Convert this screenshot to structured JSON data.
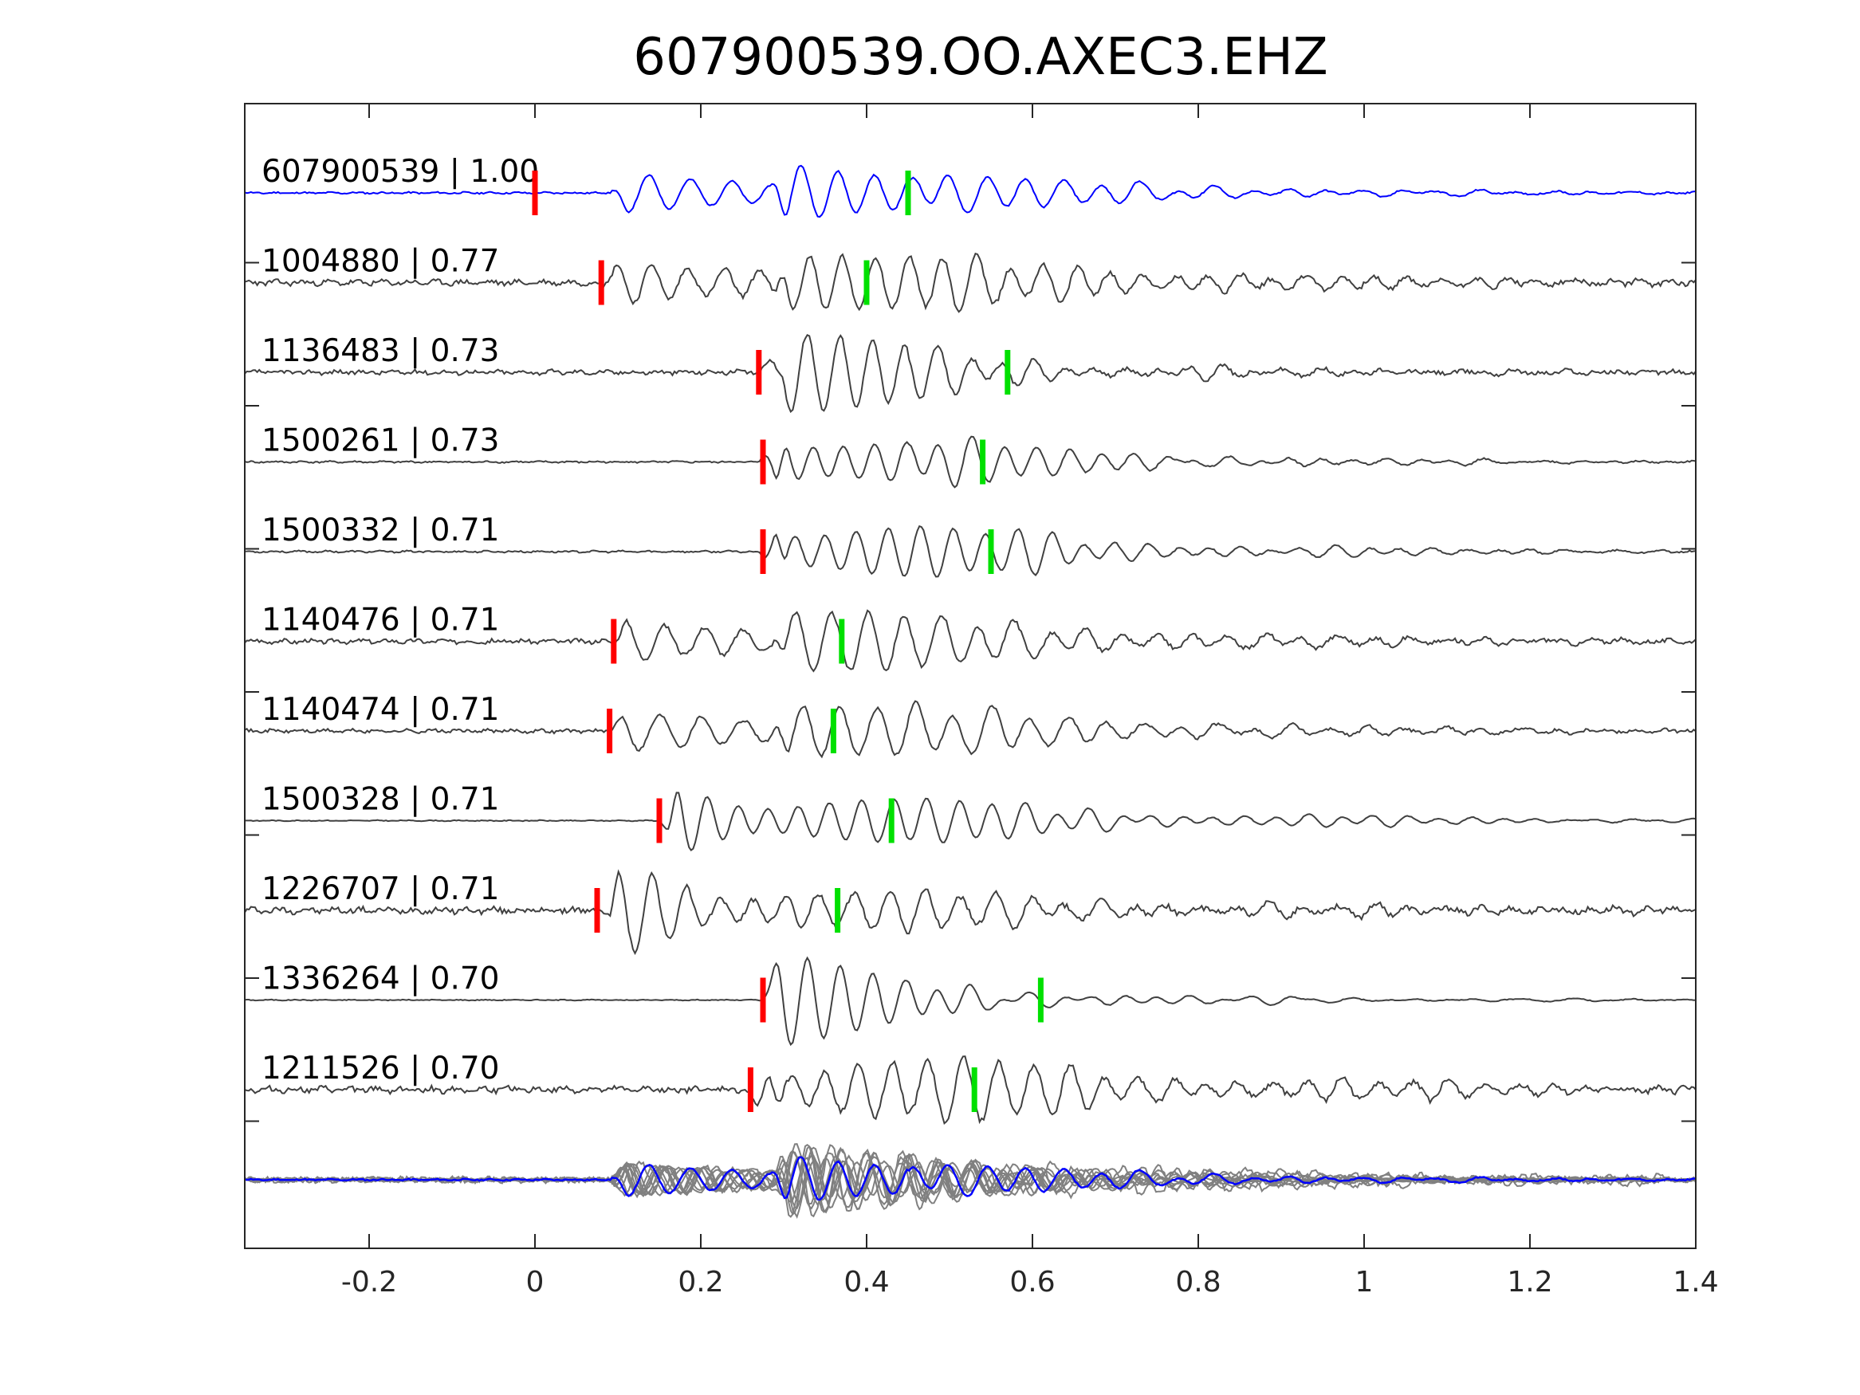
{
  "chart_data": {
    "type": "line",
    "title": "607900539.OO.AXEC3.EHZ",
    "xlabel": "",
    "ylabel": "",
    "xlim": [
      -0.35,
      1.4
    ],
    "x_ticks": [
      {
        "value": -0.2,
        "label": "-0.2"
      },
      {
        "value": 0,
        "label": "0"
      },
      {
        "value": 0.2,
        "label": "0.2"
      },
      {
        "value": 0.4,
        "label": "0.4"
      },
      {
        "value": 0.6,
        "label": "0.6"
      },
      {
        "value": 0.8,
        "label": "0.8"
      },
      {
        "value": 1,
        "label": "1"
      },
      {
        "value": 1.2,
        "label": "1.2"
      },
      {
        "value": 1.4,
        "label": "1.4"
      }
    ],
    "grid": false,
    "colors": {
      "template": "#0000ff",
      "neighbor": "#404040",
      "stack": "#808080",
      "p_pick": "#ff0000",
      "s_pick": "#00e000"
    },
    "traces": [
      {
        "label": "607900539 | 1.00",
        "p": 0.0,
        "s": 0.45,
        "onset": 0.09,
        "peak": 0.3,
        "amp": 1.0,
        "decay": 4.2,
        "freq": 20,
        "seed": 11,
        "noise": 0.02,
        "template": true
      },
      {
        "label": "1004880 | 0.77",
        "p": 0.08,
        "s": 0.4,
        "onset": 0.08,
        "peak": 0.3,
        "amp": 1.0,
        "decay": 3.2,
        "freq": 23,
        "seed": 23,
        "noise": 0.06
      },
      {
        "label": "1136483 | 0.73",
        "p": 0.27,
        "s": 0.57,
        "onset": 0.27,
        "peak": 0.3,
        "amp": 1.0,
        "decay": 5.0,
        "freq": 24,
        "seed": 37,
        "noise": 0.05
      },
      {
        "label": "1500261 | 0.73",
        "p": 0.275,
        "s": 0.54,
        "onset": 0.27,
        "peak": 0.3,
        "amp": 1.0,
        "decay": 4.5,
        "freq": 24,
        "seed": 41,
        "noise": 0.02
      },
      {
        "label": "1500332 | 0.71",
        "p": 0.275,
        "s": 0.55,
        "onset": 0.27,
        "peak": 0.3,
        "amp": 1.0,
        "decay": 4.0,
        "freq": 24,
        "seed": 53,
        "noise": 0.02
      },
      {
        "label": "1140476 | 0.71",
        "p": 0.095,
        "s": 0.37,
        "onset": 0.09,
        "peak": 0.3,
        "amp": 1.0,
        "decay": 3.8,
        "freq": 21,
        "seed": 67,
        "noise": 0.05
      },
      {
        "label": "1140474 | 0.71",
        "p": 0.09,
        "s": 0.36,
        "onset": 0.09,
        "peak": 0.3,
        "amp": 1.0,
        "decay": 3.8,
        "freq": 20,
        "seed": 71,
        "noise": 0.04
      },
      {
        "label": "1500328 | 0.71",
        "p": 0.15,
        "s": 0.43,
        "onset": 0.15,
        "peak": 0.17,
        "amp": 1.0,
        "decay": 3.2,
        "freq": 24,
        "seed": 83,
        "noise": 0.01
      },
      {
        "label": "1226707 | 0.71",
        "p": 0.075,
        "s": 0.365,
        "onset": 0.08,
        "peak": 0.1,
        "amp": 1.0,
        "decay": 3.0,
        "freq": 22,
        "seed": 97,
        "noise": 0.07
      },
      {
        "label": "1336264 | 0.70",
        "p": 0.275,
        "s": 0.61,
        "onset": 0.27,
        "peak": 0.29,
        "amp": 1.0,
        "decay": 6.0,
        "freq": 24,
        "seed": 101,
        "noise": 0.01
      },
      {
        "label": "1211526 | 0.70",
        "p": 0.26,
        "s": 0.53,
        "onset": 0.25,
        "peak": 0.29,
        "amp": 1.0,
        "decay": 2.6,
        "freq": 22,
        "seed": 113,
        "noise": 0.07
      }
    ],
    "stack": {
      "description_visible": false,
      "overlay_of_all_traces": true,
      "template_color": "#0000ff",
      "others_color": "#808080"
    }
  }
}
